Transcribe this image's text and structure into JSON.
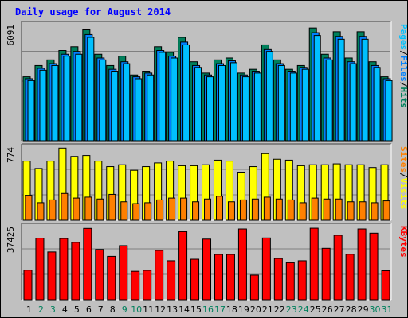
{
  "title": "Daily usage for August 2014",
  "colors": {
    "background": "#c0c0c0",
    "plot_background": "#c0c0c0",
    "hits": "#00805c",
    "files": "#0080ff",
    "pages": "#00c0ff",
    "visits": "#ffff00",
    "sites": "#ff8000",
    "kbytes": "#ff0000",
    "title": "#0000ff",
    "weekday_label": "#000000",
    "weekend_label": "#00805c",
    "grid": "#808080"
  },
  "chart_data": [
    {
      "type": "bar",
      "name": "hits-files-pages",
      "max_label": "6091",
      "ymax": 6091,
      "categories": [
        "1",
        "2",
        "3",
        "4",
        "5",
        "6",
        "7",
        "8",
        "9",
        "10",
        "11",
        "12",
        "13",
        "14",
        "15",
        "16",
        "17",
        "18",
        "19",
        "20",
        "21",
        "22",
        "23",
        "24",
        "25",
        "26",
        "27",
        "28",
        "29",
        "30",
        "31"
      ],
      "series": [
        {
          "name": "Hits",
          "color": "#00805c",
          "values": [
            3400,
            4000,
            4300,
            4800,
            5000,
            5900,
            4600,
            4000,
            4500,
            3500,
            3700,
            5000,
            4700,
            5500,
            4200,
            3600,
            4300,
            4400,
            3600,
            3800,
            5100,
            4300,
            3800,
            4000,
            6000,
            4600,
            5800,
            4400,
            5800,
            4200,
            3400
          ]
        },
        {
          "name": "Files",
          "color": "#0080ff",
          "values": [
            3300,
            3850,
            4100,
            4600,
            4750,
            5650,
            4400,
            3800,
            4200,
            3400,
            3600,
            4800,
            4500,
            5250,
            4000,
            3500,
            4100,
            4250,
            3500,
            3700,
            4850,
            4100,
            3700,
            3900,
            5750,
            4400,
            5550,
            4200,
            5550,
            4000,
            3300
          ]
        },
        {
          "name": "Pages",
          "color": "#00c0ff",
          "values": [
            3200,
            3750,
            4000,
            4500,
            4600,
            5500,
            4300,
            3700,
            4100,
            3300,
            3500,
            4700,
            4400,
            5100,
            3900,
            3400,
            4000,
            4150,
            3400,
            3600,
            4750,
            4000,
            3600,
            3800,
            5600,
            4300,
            5400,
            4100,
            5400,
            3900,
            3200
          ]
        }
      ],
      "side_labels": [
        "Pages",
        "/",
        "Files",
        "/",
        "Hits"
      ]
    },
    {
      "type": "bar",
      "name": "visits-sites",
      "max_label": "774",
      "ymax": 774,
      "categories": [
        "1",
        "2",
        "3",
        "4",
        "5",
        "6",
        "7",
        "8",
        "9",
        "10",
        "11",
        "12",
        "13",
        "14",
        "15",
        "16",
        "17",
        "18",
        "19",
        "20",
        "21",
        "22",
        "23",
        "24",
        "25",
        "26",
        "27",
        "28",
        "29",
        "30",
        "31"
      ],
      "series": [
        {
          "name": "Visits",
          "color": "#ffff00",
          "values": [
            640,
            560,
            640,
            780,
            690,
            700,
            640,
            580,
            600,
            540,
            580,
            620,
            640,
            590,
            590,
            600,
            650,
            640,
            520,
            580,
            720,
            660,
            650,
            590,
            600,
            600,
            610,
            600,
            600,
            570,
            600
          ]
        },
        {
          "name": "Sites",
          "color": "#ff8000",
          "values": [
            270,
            190,
            220,
            290,
            240,
            250,
            230,
            280,
            200,
            180,
            190,
            220,
            240,
            240,
            200,
            230,
            260,
            200,
            220,
            230,
            250,
            230,
            220,
            190,
            240,
            230,
            230,
            200,
            200,
            190,
            210
          ]
        }
      ],
      "side_labels": [
        "Sites",
        "/",
        "Visits"
      ]
    },
    {
      "type": "bar",
      "name": "kbytes",
      "max_label": "37425",
      "ymax": 37425,
      "categories": [
        "1",
        "2",
        "3",
        "4",
        "5",
        "6",
        "7",
        "8",
        "9",
        "10",
        "11",
        "12",
        "13",
        "14",
        "15",
        "16",
        "17",
        "18",
        "19",
        "20",
        "21",
        "22",
        "23",
        "24",
        "25",
        "26",
        "27",
        "28",
        "29",
        "30",
        "31"
      ],
      "series": [
        {
          "name": "KBytes",
          "color": "#ff0000",
          "values": [
            15500,
            32200,
            25000,
            32000,
            30000,
            37300,
            26300,
            22700,
            28300,
            14900,
            15400,
            25800,
            20400,
            35600,
            21200,
            31700,
            23700,
            23700,
            37000,
            12900,
            32300,
            21600,
            19400,
            20400,
            37400,
            26900,
            33700,
            23800,
            37000,
            34800,
            15200
          ]
        }
      ],
      "side_labels": [
        "KBytes"
      ]
    }
  ],
  "day_labels": [
    {
      "text": "1",
      "weekend": false
    },
    {
      "text": "2",
      "weekend": true
    },
    {
      "text": "3",
      "weekend": true
    },
    {
      "text": "4",
      "weekend": false
    },
    {
      "text": "5",
      "weekend": false
    },
    {
      "text": "6",
      "weekend": false
    },
    {
      "text": "7",
      "weekend": false
    },
    {
      "text": "8",
      "weekend": false
    },
    {
      "text": "9",
      "weekend": true
    },
    {
      "text": "10",
      "weekend": true
    },
    {
      "text": "11",
      "weekend": false
    },
    {
      "text": "12",
      "weekend": false
    },
    {
      "text": "13",
      "weekend": false
    },
    {
      "text": "14",
      "weekend": false
    },
    {
      "text": "15",
      "weekend": false
    },
    {
      "text": "16",
      "weekend": true
    },
    {
      "text": "17",
      "weekend": true
    },
    {
      "text": "18",
      "weekend": false
    },
    {
      "text": "19",
      "weekend": false
    },
    {
      "text": "20",
      "weekend": false
    },
    {
      "text": "21",
      "weekend": false
    },
    {
      "text": "22",
      "weekend": false
    },
    {
      "text": "23",
      "weekend": true
    },
    {
      "text": "24",
      "weekend": true
    },
    {
      "text": "25",
      "weekend": false
    },
    {
      "text": "26",
      "weekend": false
    },
    {
      "text": "27",
      "weekend": false
    },
    {
      "text": "28",
      "weekend": false
    },
    {
      "text": "29",
      "weekend": false
    },
    {
      "text": "30",
      "weekend": true
    },
    {
      "text": "31",
      "weekend": true
    }
  ]
}
